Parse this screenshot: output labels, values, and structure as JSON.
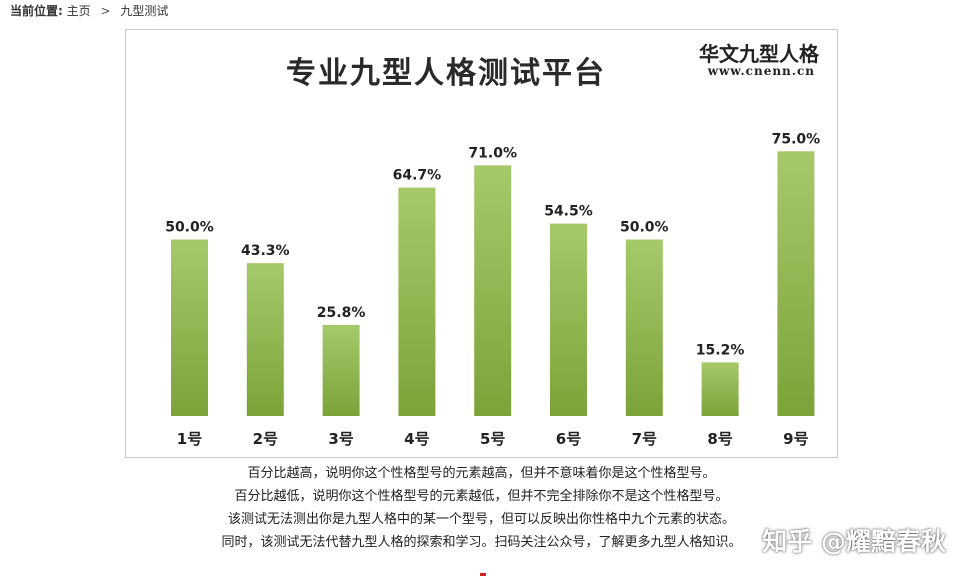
{
  "breadcrumb": {
    "label": "当前位置:",
    "home": "主页",
    "separator": ">",
    "current": "九型测试"
  },
  "chart": {
    "title": "专业九型人格测试平台",
    "brand_name": "华文九型人格",
    "brand_url": "www.cnenn.cn"
  },
  "chart_data": {
    "type": "bar",
    "categories": [
      "1号",
      "2号",
      "3号",
      "4号",
      "5号",
      "6号",
      "7号",
      "8号",
      "9号"
    ],
    "values": [
      50.0,
      43.3,
      25.8,
      64.7,
      71.0,
      54.5,
      50.0,
      15.2,
      75.0
    ],
    "data_labels": [
      "50.0%",
      "43.3%",
      "25.8%",
      "64.7%",
      "71.0%",
      "54.5%",
      "50.0%",
      "15.2%",
      "75.0%"
    ],
    "title": "专业九型人格测试平台",
    "xlabel": "",
    "ylabel": "",
    "ylim": [
      0,
      100
    ],
    "grid": false,
    "legend": "none",
    "bar_color_top": "#a6c96a",
    "bar_color_bottom": "#7ca33a"
  },
  "footer": {
    "lines": [
      "百分比越高，说明你这个性格型号的元素越高，但并不意味着你是这个性格型号。",
      "百分比越低，说明你这个性格型号的元素越低，但并不完全排除你不是这个性格型号。",
      "该测试无法测出你是九型人格中的某一个型号，但可以反映出你性格中九个元素的状态。",
      "同时，该测试无法代替九型人格的探索和学习。扫码关注公众号，了解更多九型人格知识。"
    ]
  },
  "watermark": "知乎 @耀黯春秋"
}
